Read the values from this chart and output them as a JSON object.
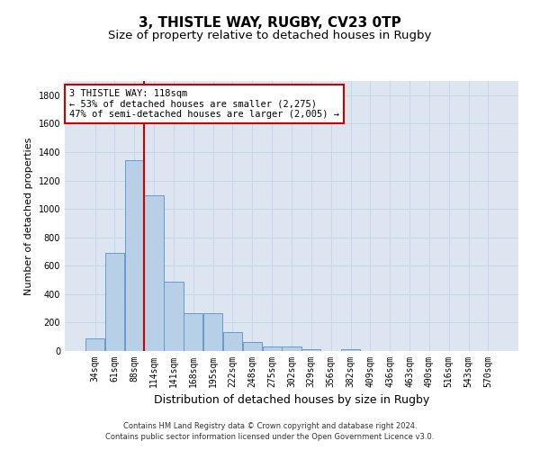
{
  "title1": "3, THISTLE WAY, RUGBY, CV23 0TP",
  "title2": "Size of property relative to detached houses in Rugby",
  "xlabel": "Distribution of detached houses by size in Rugby",
  "ylabel": "Number of detached properties",
  "categories": [
    "34sqm",
    "61sqm",
    "88sqm",
    "114sqm",
    "141sqm",
    "168sqm",
    "195sqm",
    "222sqm",
    "248sqm",
    "275sqm",
    "302sqm",
    "329sqm",
    "356sqm",
    "382sqm",
    "409sqm",
    "436sqm",
    "463sqm",
    "490sqm",
    "516sqm",
    "543sqm",
    "570sqm"
  ],
  "values": [
    88,
    690,
    1340,
    1095,
    490,
    265,
    265,
    130,
    65,
    30,
    30,
    15,
    0,
    15,
    0,
    0,
    0,
    0,
    0,
    0,
    0
  ],
  "bar_color": "#b8cfe8",
  "bar_edge_color": "#6699cc",
  "vline_color": "#cc0000",
  "annotation_line1": "3 THISTLE WAY: 118sqm",
  "annotation_line2": "← 53% of detached houses are smaller (2,275)",
  "annotation_line3": "47% of semi-detached houses are larger (2,005) →",
  "annotation_box_color": "#ffffff",
  "annotation_box_edge": "#cc0000",
  "ylim": [
    0,
    1900
  ],
  "yticks": [
    0,
    200,
    400,
    600,
    800,
    1000,
    1200,
    1400,
    1600,
    1800
  ],
  "grid_color": "#c8d4e8",
  "bg_color": "#dde6f0",
  "footer1": "Contains HM Land Registry data © Crown copyright and database right 2024.",
  "footer2": "Contains public sector information licensed under the Open Government Licence v3.0.",
  "title1_fontsize": 11,
  "title2_fontsize": 9.5,
  "xlabel_fontsize": 9,
  "ylabel_fontsize": 8,
  "annotation_fontsize": 7.5,
  "tick_fontsize": 7
}
